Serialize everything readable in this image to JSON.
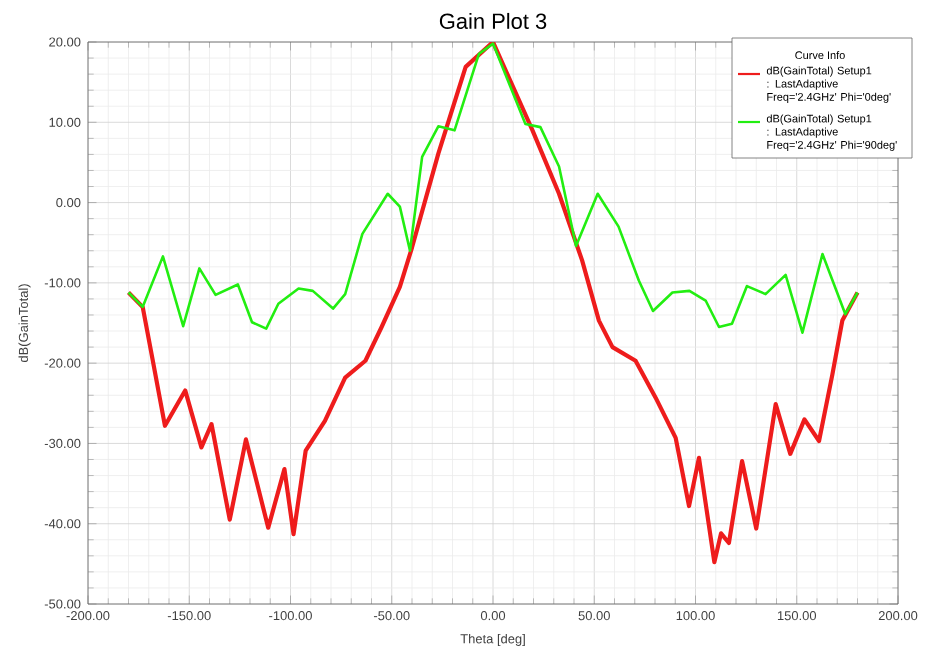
{
  "chart_data": {
    "type": "line",
    "title": "Gain Plot 3",
    "xlabel": "Theta [deg]",
    "ylabel": "dB(GainTotal)",
    "legend_title": "Curve Info",
    "legend": "top right",
    "grid": true,
    "line_style": "solid",
    "marker": "none",
    "xlim": [
      -200,
      200
    ],
    "ylim": [
      -50,
      20
    ],
    "xticks": [
      {
        "value": -200,
        "label": "-200.00"
      },
      {
        "value": -150,
        "label": "-150.00"
      },
      {
        "value": -100,
        "label": "-100.00"
      },
      {
        "value": -50,
        "label": "-50.00"
      },
      {
        "value": 0,
        "label": "0.00"
      },
      {
        "value": 50,
        "label": "50.00"
      },
      {
        "value": 100,
        "label": "100.00"
      },
      {
        "value": 150,
        "label": "150.00"
      },
      {
        "value": 200,
        "label": "200.00"
      }
    ],
    "yticks": [
      {
        "value": -50,
        "label": "-50.00"
      },
      {
        "value": -40,
        "label": "-40.00"
      },
      {
        "value": -30,
        "label": "-30.00"
      },
      {
        "value": -20,
        "label": "-20.00"
      },
      {
        "value": -10,
        "label": "-10.00"
      },
      {
        "value": 0,
        "label": "0.00"
      },
      {
        "value": 10,
        "label": "10.00"
      },
      {
        "value": 20,
        "label": "20.00"
      }
    ],
    "series": [
      {
        "name": "dB(GainTotal) Setup1 : LastAdaptive Freq='2.4GHz' Phi='0deg'",
        "color": "#ee1c1c",
        "x": [
          -180,
          -173,
          -168,
          -162,
          -152,
          -144,
          -139,
          -130,
          -122,
          -111,
          -103,
          -98.5,
          -92.5,
          -83,
          -73,
          -63,
          -55,
          -46,
          -40,
          -27,
          -13.5,
          0,
          19.5,
          32.6,
          44,
          52.3,
          59,
          70.4,
          80.3,
          90.2,
          96.8,
          101.7,
          109.3,
          112.6,
          116.5,
          123,
          130,
          139.6,
          146.8,
          153.8,
          161,
          167.6,
          172.5,
          180
        ],
        "values": [
          -11.2,
          -13,
          -19.7,
          -27.8,
          -23.4,
          -30.5,
          -27.6,
          -39.5,
          -29.5,
          -40.5,
          -33.2,
          -41.3,
          -30.9,
          -27.2,
          -21.8,
          -19.7,
          -15.5,
          -10.5,
          -5.6,
          6.1,
          16.9,
          20,
          9,
          1.1,
          -7.2,
          -14.7,
          -18,
          -19.7,
          -24.3,
          -29.3,
          -37.8,
          -31.8,
          -44.8,
          -41.2,
          -42.4,
          -32.2,
          -40.6,
          -25.1,
          -31.3,
          -27,
          -29.7,
          -21.4,
          -14.7,
          -11.2
        ]
      },
      {
        "name": "dB(GainTotal) Setup1 : LastAdaptive Freq='2.4GHz' Phi='90deg'",
        "color": "#22ee11",
        "x": [
          -180,
          -173,
          -163,
          -153,
          -145,
          -137,
          -126,
          -119,
          -112,
          -106,
          -96,
          -89,
          -79,
          -73,
          -64.5,
          -52,
          -46,
          -41,
          -35,
          -27,
          -19,
          -7,
          0,
          16,
          23.4,
          32.6,
          41,
          51.7,
          62,
          72,
          79,
          88.6,
          97,
          105,
          111.6,
          118,
          125.4,
          134.6,
          144.5,
          152.8,
          162.7,
          174,
          180
        ],
        "values": [
          -11.2,
          -13,
          -6.7,
          -15.4,
          -8.2,
          -11.5,
          -10.2,
          -14.9,
          -15.7,
          -12.6,
          -10.7,
          -11,
          -13.2,
          -11.4,
          -3.9,
          1.1,
          -0.5,
          -6,
          5.7,
          9.5,
          9,
          18.5,
          19.8,
          9.8,
          9.4,
          4.5,
          -5.4,
          1.1,
          -3,
          -9.7,
          -13.5,
          -11.2,
          -11,
          -12.2,
          -15.5,
          -15.1,
          -10.4,
          -11.4,
          -9,
          -16.2,
          -6.4,
          -13.9,
          -11.2
        ]
      }
    ]
  }
}
